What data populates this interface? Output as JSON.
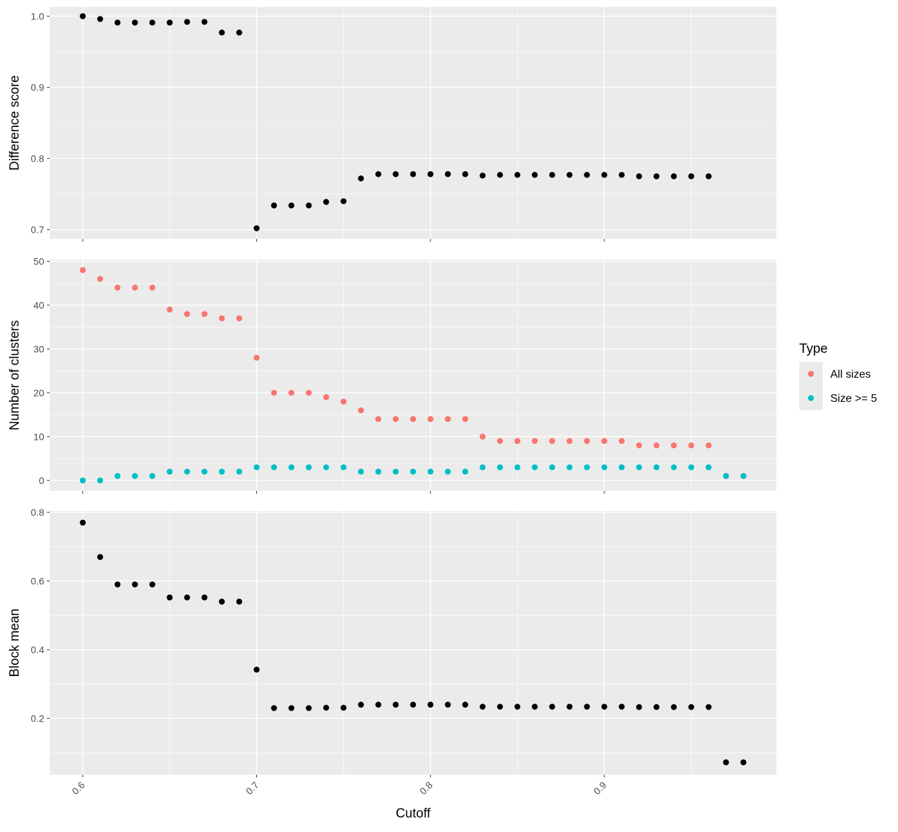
{
  "chart_data": {
    "type": "scatter",
    "xlabel": "Cutoff",
    "xlim": [
      0.581,
      0.999
    ],
    "x_ticks": [
      0.6,
      0.7,
      0.8,
      0.9
    ],
    "x_tick_labels": [
      "0.6",
      "0.7",
      "0.8",
      "0.9"
    ],
    "x_tick_label_rotation": 45,
    "grid": true,
    "background": "#ebebeb",
    "legend": {
      "title": "Type",
      "position": "right",
      "entries": [
        {
          "label": "All sizes",
          "color": "#F8766D"
        },
        {
          "label": "Size >= 5",
          "color": "#00BFC4"
        }
      ]
    },
    "panels": [
      {
        "ylabel": "Difference score",
        "ylim": [
          0.687,
          1.013
        ],
        "y_ticks": [
          0.7,
          0.8,
          0.9,
          1.0
        ],
        "y_tick_labels": [
          "0.7",
          "0.8",
          "0.9",
          "1.0"
        ],
        "series": [
          {
            "color": "#000000",
            "x": [
              0.6,
              0.61,
              0.62,
              0.63,
              0.64,
              0.65,
              0.66,
              0.67,
              0.68,
              0.69,
              0.7,
              0.71,
              0.72,
              0.73,
              0.74,
              0.75,
              0.76,
              0.77,
              0.78,
              0.79,
              0.8,
              0.81,
              0.82,
              0.83,
              0.84,
              0.85,
              0.86,
              0.87,
              0.88,
              0.89,
              0.9,
              0.91,
              0.92,
              0.93,
              0.94,
              0.95,
              0.96
            ],
            "y": [
              1.0,
              0.996,
              0.991,
              0.991,
              0.991,
              0.991,
              0.992,
              0.992,
              0.977,
              0.977,
              0.702,
              0.734,
              0.734,
              0.734,
              0.739,
              0.74,
              0.772,
              0.778,
              0.778,
              0.778,
              0.778,
              0.778,
              0.778,
              0.776,
              0.777,
              0.777,
              0.777,
              0.777,
              0.777,
              0.777,
              0.777,
              0.777,
              0.775,
              0.775,
              0.775,
              0.775,
              0.775
            ]
          }
        ]
      },
      {
        "ylabel": "Number of clusters",
        "ylim": [
          -2.4,
          50.4
        ],
        "y_ticks": [
          0,
          10,
          20,
          30,
          40,
          50
        ],
        "y_tick_labels": [
          "0",
          "10",
          "20",
          "30",
          "40",
          "50"
        ],
        "series": [
          {
            "name": "All sizes",
            "color": "#F8766D",
            "x": [
              0.6,
              0.61,
              0.62,
              0.63,
              0.64,
              0.65,
              0.66,
              0.67,
              0.68,
              0.69,
              0.7,
              0.71,
              0.72,
              0.73,
              0.74,
              0.75,
              0.76,
              0.77,
              0.78,
              0.79,
              0.8,
              0.81,
              0.82,
              0.83,
              0.84,
              0.85,
              0.86,
              0.87,
              0.88,
              0.89,
              0.9,
              0.91,
              0.92,
              0.93,
              0.94,
              0.95,
              0.96,
              0.97,
              0.98
            ],
            "y": [
              48,
              46,
              44,
              44,
              44,
              39,
              38,
              38,
              37,
              37,
              28,
              20,
              20,
              20,
              19,
              18,
              16,
              14,
              14,
              14,
              14,
              14,
              14,
              10,
              9,
              9,
              9,
              9,
              9,
              9,
              9,
              9,
              8,
              8,
              8,
              8,
              8,
              1,
              1
            ]
          },
          {
            "name": "Size >= 5",
            "color": "#00BFC4",
            "x": [
              0.6,
              0.61,
              0.62,
              0.63,
              0.64,
              0.65,
              0.66,
              0.67,
              0.68,
              0.69,
              0.7,
              0.71,
              0.72,
              0.73,
              0.74,
              0.75,
              0.76,
              0.77,
              0.78,
              0.79,
              0.8,
              0.81,
              0.82,
              0.83,
              0.84,
              0.85,
              0.86,
              0.87,
              0.88,
              0.89,
              0.9,
              0.91,
              0.92,
              0.93,
              0.94,
              0.95,
              0.96,
              0.97,
              0.98
            ],
            "y": [
              0,
              0,
              1,
              1,
              1,
              2,
              2,
              2,
              2,
              2,
              3,
              3,
              3,
              3,
              3,
              3,
              2,
              2,
              2,
              2,
              2,
              2,
              2,
              3,
              3,
              3,
              3,
              3,
              3,
              3,
              3,
              3,
              3,
              3,
              3,
              3,
              3,
              1,
              1
            ]
          }
        ]
      },
      {
        "ylabel": "Block mean",
        "ylim": [
          0.036,
          0.804
        ],
        "y_ticks": [
          0.2,
          0.4,
          0.6,
          0.8
        ],
        "y_tick_labels": [
          "0.2",
          "0.4",
          "0.6",
          "0.8"
        ],
        "series": [
          {
            "color": "#000000",
            "x": [
              0.6,
              0.61,
              0.62,
              0.63,
              0.64,
              0.65,
              0.66,
              0.67,
              0.68,
              0.69,
              0.7,
              0.71,
              0.72,
              0.73,
              0.74,
              0.75,
              0.76,
              0.77,
              0.78,
              0.79,
              0.8,
              0.81,
              0.82,
              0.83,
              0.84,
              0.85,
              0.86,
              0.87,
              0.88,
              0.89,
              0.9,
              0.91,
              0.92,
              0.93,
              0.94,
              0.95,
              0.96,
              0.97,
              0.98
            ],
            "y": [
              0.77,
              0.67,
              0.59,
              0.59,
              0.59,
              0.552,
              0.552,
              0.552,
              0.54,
              0.54,
              0.342,
              0.23,
              0.23,
              0.23,
              0.231,
              0.231,
              0.24,
              0.24,
              0.24,
              0.24,
              0.24,
              0.24,
              0.24,
              0.234,
              0.234,
              0.234,
              0.234,
              0.234,
              0.234,
              0.234,
              0.234,
              0.234,
              0.233,
              0.233,
              0.233,
              0.233,
              0.233,
              0.072,
              0.072
            ]
          }
        ]
      }
    ]
  }
}
